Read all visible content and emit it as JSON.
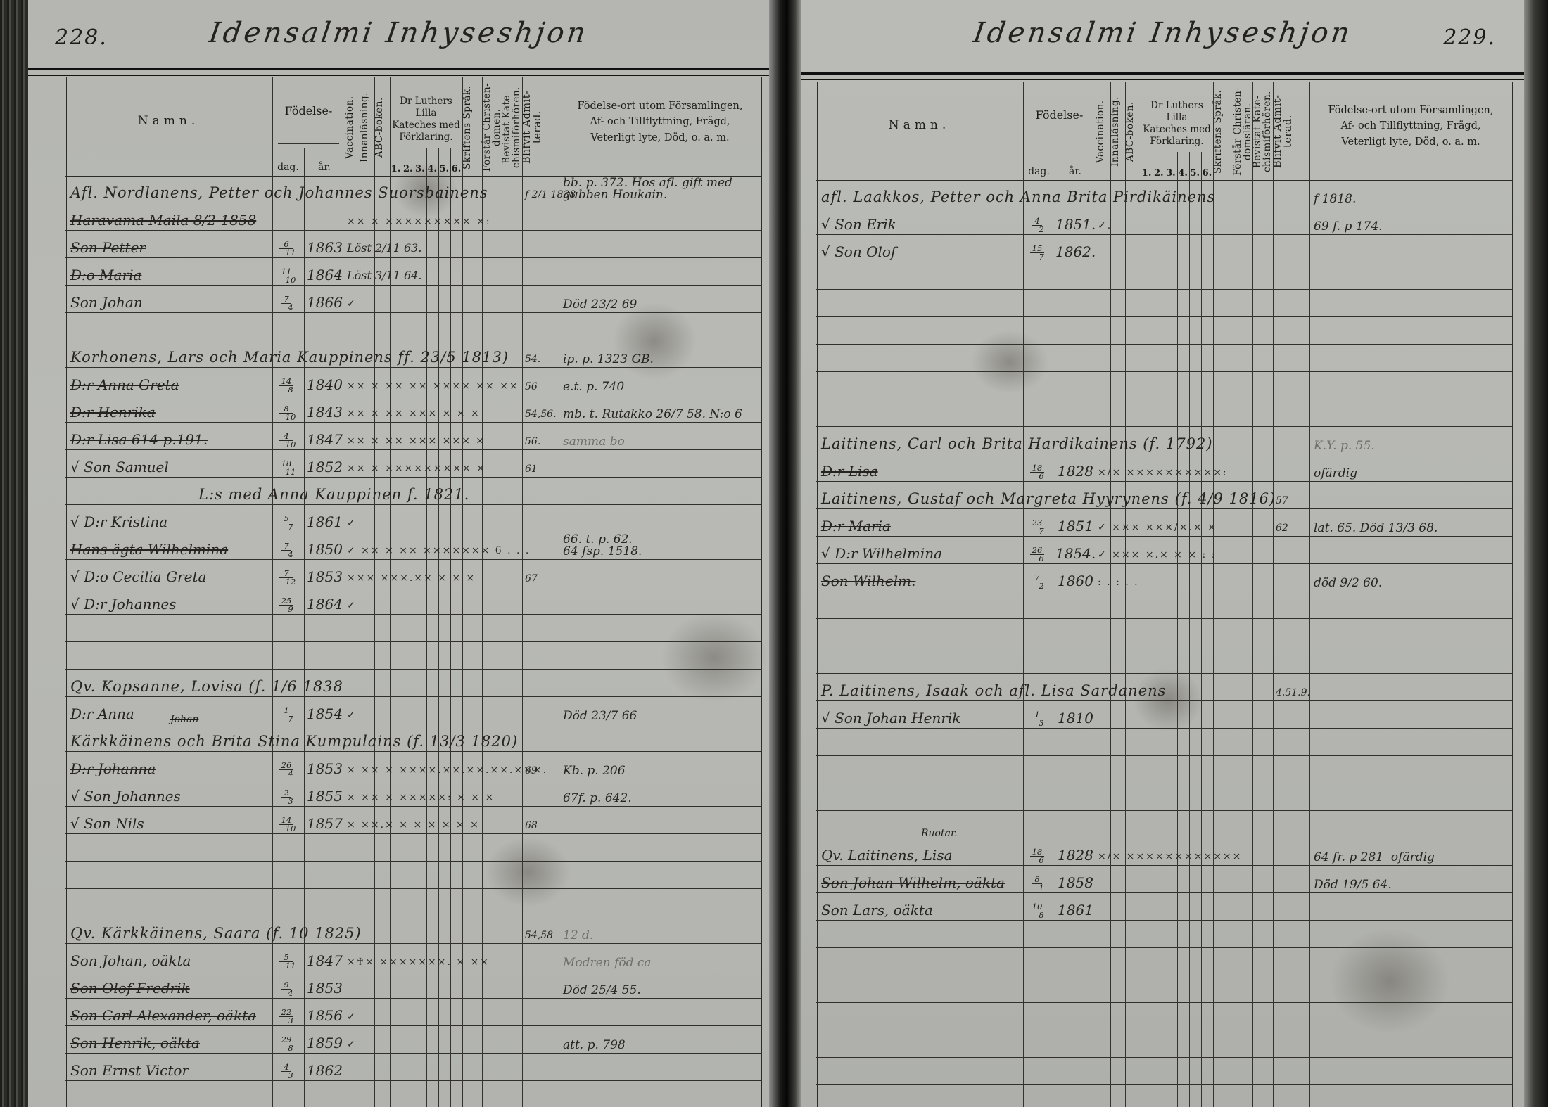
{
  "pages": [
    {
      "number": "228.",
      "title": "Idensalmi Inhyseshjon",
      "header": {
        "namn": "Namn.",
        "fodelse": "Födelse-",
        "dag": "dag.",
        "ar": "år.",
        "vaccination": "Vaccination.",
        "innanlasning": "Innanläsning.",
        "abc": "ABC-boken.",
        "katekes": "Dr Luthers Lilla\nKateches med\nFörklaring.",
        "katekes_cols": [
          "1.",
          "2.",
          "3.",
          "4.",
          "5.",
          "6."
        ],
        "sprak": "Skriftens Språk.",
        "forstar": "Förstår Christen-domen.",
        "bevistat": "Bevistat Kate-chismiförhören.",
        "blifvit": "Blifvit Admit-terad.",
        "remarks": "Födelse-ort utom Församlingen,\nAf- och Tillflyttning, Frägd,\nVeterligt lyte, Död, o. a. m."
      },
      "rows": [
        {
          "name": "Afl. Nordlanens, Petter och Johannes Suorsbainens",
          "span": true,
          "adm": "f 2/1 1838",
          "remark": "bb. p. 372. Hos afl. gift med\ngubben Houkain."
        },
        {
          "name": "Haravama Maila  8/2 1858",
          "struck": true,
          "marks": "×× × ××××××××× ×:"
        },
        {
          "name": "Son Petter",
          "struck": true,
          "day": "6/11",
          "year": "1863",
          "note": "Löst 2/11 63."
        },
        {
          "name": "D:o Maria",
          "struck": true,
          "day": "11/10",
          "year": "1864",
          "note": "Löst 3/11 64."
        },
        {
          "name": "Son Johan",
          "day": "7/4",
          "year": "1866",
          "marks": "✓",
          "remark": "Död 23/2 69"
        },
        {},
        {
          "name": "Korhonens, Lars och Maria Kauppinens ff. 23/5 1813)",
          "span": true,
          "adm": "54.",
          "remark": "ip. p. 1323 GB."
        },
        {
          "name": "D:r Anna Greta",
          "struck": true,
          "day": "14/8",
          "year": "1840",
          "marks": "×× × ×× ×× ×××× ×× ××",
          "adm": "56",
          "remark": "e.t. p. 740"
        },
        {
          "name": "D:r Henrika",
          "struck": true,
          "day": "8/10",
          "year": "1843",
          "marks": "×× × ×× ××× × × ×",
          "adm": "54,56.",
          "remark": "mb. t. Rutakko 26/7 58. N:o 6"
        },
        {
          "name": "D:r Lisa  614 p.191.",
          "struck": true,
          "day": "4/10",
          "year": "1847",
          "marks": "×× × ×× ××× ××× ×",
          "adm": "56.",
          "remark": "samma bo",
          "pencil": true
        },
        {
          "name": "√ Son Samuel",
          "day": "18/11",
          "year": "1852",
          "marks": "×× × ××××××××× ×",
          "adm": "61"
        },
        {
          "name": "L:s med Anna Kauppinen f. 1821.",
          "span": true,
          "indent": true
        },
        {
          "name": "√ D:r Kristina",
          "day": "5/7",
          "year": "1861",
          "marks": "✓"
        },
        {
          "name": "Hans ägta Wilhelmina",
          "struck": true,
          "day": "7/4",
          "year": "1850",
          "marks": "✓ ×× × ×× ××××××× 6 . . .",
          "remark": "66. t. p. 62.\n64 fsp. 1518."
        },
        {
          "name": "√ D:o Cecilia Greta",
          "day": "7/12",
          "year": "1853",
          "marks": "××× ×××.×× × × ×",
          "adm": "67"
        },
        {
          "name": "√ D:r Johannes",
          "day": "25/9",
          "year": "1864",
          "marks": "✓"
        },
        {},
        {},
        {
          "name": "Qv. Kopsanne, Lovisa (f. 1/6 1838",
          "span": true
        },
        {
          "name": "D:r Anna",
          "day": "1/7",
          "year": "1854",
          "marks": "✓",
          "remark": "Död 23/7 66"
        },
        {
          "name": "Kärkkäinens och Brita Stina Kumpulains (f. 13/3 1820)",
          "span": true,
          "above": "Johan",
          "above_struck": true
        },
        {
          "name": "D:r Johanna",
          "struck": true,
          "day": "26/4",
          "year": "1853",
          "marks": "× ×× × ××××.××.××.××.×××.",
          "adm": "69",
          "remark": "Kb. p. 206"
        },
        {
          "name": "√ Son Johannes",
          "day": "2/3",
          "year": "1855",
          "marks": "× ×× × ×××××: × × ×",
          "remark": "67f. p. 642."
        },
        {
          "name": "√ Son Nils",
          "day": "14/10",
          "year": "1857",
          "marks": "× ××.× × × × × × ×",
          "adm": "68"
        },
        {},
        {},
        {},
        {
          "name": "Qv. Kärkkäinens, Saara (f. 10 1825)",
          "span": true,
          "adm": "54,58",
          "remark": "12 d.",
          "pencil": true
        },
        {
          "name": "Son Johan, oäkta",
          "day": "5/11",
          "year": "1847",
          "marks": "×♰× ×××××××. × ××",
          "remark": "Modren föd ca",
          "pencil": true
        },
        {
          "name": "Son Olof Fredrik",
          "struck": true,
          "day": "9/4",
          "year": "1853",
          "remark": "Död 25/4 55."
        },
        {
          "name": "Son Carl Alexander, oäkta",
          "struck": true,
          "day": "22/3",
          "year": "1856",
          "marks": "✓"
        },
        {
          "name": "Son Henrik, oäkta",
          "struck": true,
          "day": "29/8",
          "year": "1859",
          "marks": "✓",
          "remark": "att. p. 798"
        },
        {
          "name": "Son Ernst Victor",
          "day": "4/3",
          "year": "1862"
        },
        {},
        {}
      ]
    },
    {
      "number": "229.",
      "title": "Idensalmi Inhyseshjon",
      "header": {
        "namn": "Namn.",
        "fodelse": "Födelse-",
        "dag": "dag.",
        "ar": "år.",
        "vaccination": "Vaccination.",
        "innanlasning": "Innanläsning.",
        "abc": "ABC-boken.",
        "katekes": "Dr Luthers Lilla\nKateches med\nFörklaring.",
        "katekes_cols": [
          "1.",
          "2.",
          "3.",
          "4.",
          "5.",
          "6."
        ],
        "sprak": "Skriftens Språk.",
        "forstar": "Förstår Christen-domsläran.",
        "bevistat": "Bevistat Kate-chismiförhören.",
        "blifvit": "Blifvit Admit-terad.",
        "remarks": "Födelse-ort utom Församlingen,\nAf- och Tillflyttning, Frägd,\nVeterligt lyte, Död, o. a. m."
      },
      "rows": [
        {
          "name": "afl. Laakkos, Petter och Anna Brita Pirdikäinens",
          "span": true,
          "remark": "f 1818."
        },
        {
          "name": "√ Son Erik",
          "day": "4/2",
          "year": "1851.",
          "marks": "✓.",
          "remark": "69 f. p 174."
        },
        {
          "name": "√ Son Olof",
          "day": "15/7",
          "year": "1862."
        },
        {},
        {},
        {},
        {},
        {},
        {},
        {
          "name": "Laitinens, Carl och Brita Hardikainens (f. 1792)",
          "span": true,
          "remark": "K.Y. p. 55.",
          "pencil": true
        },
        {
          "name": "D:r Lisa",
          "struck": true,
          "day": "18/6",
          "year": "1828",
          "marks": "×/× ××××××××××:",
          "remark": "ofärdig"
        },
        {
          "name": "Laitinens, Gustaf och Margreta Hyyrynens (f. 4/9 1816)",
          "span": true,
          "adm": "57"
        },
        {
          "name": "D:r Maria",
          "struck": true,
          "day": "23/7",
          "year": "1851",
          "marks": "✓ ××× ×××/×.× ×",
          "adm": "62",
          "remark": "lat. 65. Död 13/3 68."
        },
        {
          "name": "√ D:r Wilhelmina",
          "day": "26/6",
          "year": "1854.",
          "marks": "✓ ××× ×.× × × : :"
        },
        {
          "name": "Son Wilhelm.",
          "struck": true,
          "day": "7/2",
          "year": "1860",
          "marks": ":  .  :  .  .",
          "remark": "död 9/2 60."
        },
        {},
        {},
        {},
        {
          "name": "P. Laitinens, Isaak och afl. Lisa Sardanens",
          "span": true,
          "adm": "4.51.9."
        },
        {
          "name": "√ Son Johan Henrik",
          "day": "1/3",
          "year": "1810"
        },
        {},
        {},
        {},
        {},
        {
          "name": "Qv. Laitinens, Lisa",
          "above": "Ruotar.",
          "day": "18/6",
          "year": "1828",
          "marks": "×/× ××××××××××××",
          "remark": "64 fr. p 281  ofärdig"
        },
        {
          "name": "Son Johan Wilhelm, oäkta",
          "struck": true,
          "day": "8/1",
          "year": "1858",
          "remark": "Död 19/5 64."
        },
        {
          "name": "Son Lars, oäkta",
          "day": "10/8",
          "year": "1861"
        },
        {},
        {},
        {},
        {},
        {},
        {},
        {},
        {}
      ]
    }
  ]
}
